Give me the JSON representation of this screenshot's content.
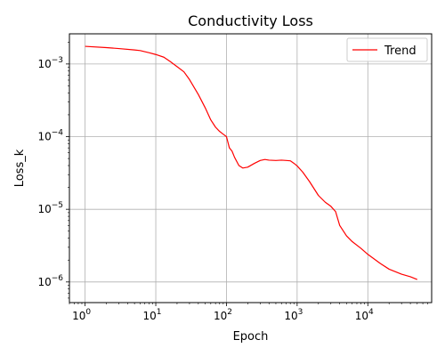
{
  "chart_data": {
    "type": "line",
    "title": "Conductivity Loss",
    "xlabel": "Epoch",
    "ylabel": "Loss_k",
    "xscale": "log",
    "yscale": "log",
    "xlim": [
      0.6,
      80000
    ],
    "ylim": [
      5.2e-07,
      0.0026
    ],
    "xticks": [
      {
        "value": 1,
        "base": "10",
        "exp": "0"
      },
      {
        "value": 10,
        "base": "10",
        "exp": "1"
      },
      {
        "value": 100,
        "base": "10",
        "exp": "2"
      },
      {
        "value": 1000,
        "base": "10",
        "exp": "3"
      },
      {
        "value": 10000,
        "base": "10",
        "exp": "4"
      }
    ],
    "yticks": [
      {
        "value": 0.001,
        "base": "10",
        "exp": "−3"
      },
      {
        "value": 0.0001,
        "base": "10",
        "exp": "−4"
      },
      {
        "value": 1e-05,
        "base": "10",
        "exp": "−5"
      },
      {
        "value": 1e-06,
        "base": "10",
        "exp": "−6"
      }
    ],
    "grid": true,
    "legend_position": "top-right",
    "series": [
      {
        "name": "Trend",
        "color": "#ff0000",
        "x": [
          1,
          2,
          3,
          5,
          6,
          8,
          10,
          13,
          16,
          20,
          25,
          30,
          40,
          50,
          60,
          70,
          80,
          90,
          100,
          110,
          120,
          130,
          150,
          170,
          200,
          250,
          300,
          350,
          400,
          500,
          600,
          700,
          800,
          900,
          1000,
          1200,
          1500,
          2000,
          2500,
          3000,
          3500,
          4000,
          5000,
          6000,
          8000,
          10000,
          15000,
          20000,
          30000,
          40000,
          50000
        ],
        "y": [
          0.00175,
          0.00168,
          0.00163,
          0.00156,
          0.00153,
          0.00143,
          0.00135,
          0.00124,
          0.00108,
          0.00092,
          0.00078,
          0.00061,
          0.00038,
          0.00025,
          0.00017,
          0.000135,
          0.000118,
          0.000108,
          0.0001,
          7e-05,
          6.3e-05,
          5.2e-05,
          4e-05,
          3.7e-05,
          3.8e-05,
          4.3e-05,
          4.7e-05,
          4.85e-05,
          4.75e-05,
          4.7e-05,
          4.75e-05,
          4.7e-05,
          4.65e-05,
          4.3e-05,
          3.95e-05,
          3.25e-05,
          2.4e-05,
          1.55e-05,
          1.25e-05,
          1.1e-05,
          9.3e-06,
          6e-06,
          4.3e-06,
          3.6e-06,
          2.9e-06,
          2.4e-06,
          1.8e-06,
          1.5e-06,
          1.28e-06,
          1.18e-06,
          1.08e-06
        ]
      }
    ]
  }
}
